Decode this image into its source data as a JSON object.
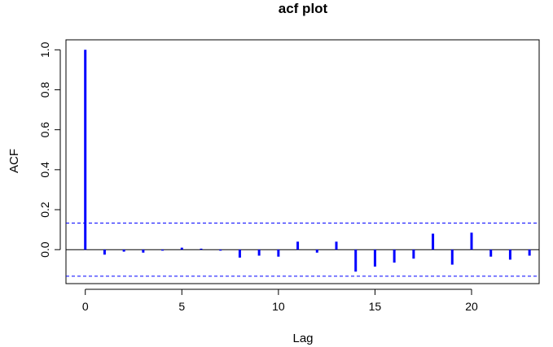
{
  "chart_data": {
    "type": "bar",
    "title": "acf plot",
    "xlabel": "Lag",
    "ylabel": "ACF",
    "xlim": [
      -1,
      23.5
    ],
    "ylim": [
      -0.17,
      1.05
    ],
    "x_ticks": [
      0,
      5,
      10,
      15,
      20
    ],
    "y_ticks": [
      0.0,
      0.2,
      0.4,
      0.6,
      0.8,
      1.0
    ],
    "x_tick_labels": [
      "0",
      "5",
      "10",
      "15",
      "20"
    ],
    "y_tick_labels": [
      "0.0",
      "0.2",
      "0.4",
      "0.6",
      "0.8",
      "1.0"
    ],
    "lags": [
      0,
      1,
      2,
      3,
      4,
      5,
      6,
      7,
      8,
      9,
      10,
      11,
      12,
      13,
      14,
      15,
      16,
      17,
      18,
      19,
      20,
      21,
      22,
      23
    ],
    "values": [
      1.0,
      -0.025,
      -0.01,
      -0.015,
      -0.005,
      0.01,
      0.005,
      -0.005,
      -0.04,
      -0.03,
      -0.035,
      0.04,
      -0.015,
      0.04,
      -0.11,
      -0.085,
      -0.065,
      -0.045,
      0.08,
      -0.075,
      0.085,
      -0.035,
      -0.05,
      -0.03
    ],
    "confidence_bound": 0.133,
    "colors": {
      "bars": "#0000ff",
      "ci": "#0000ff",
      "axis": "#000000"
    }
  }
}
